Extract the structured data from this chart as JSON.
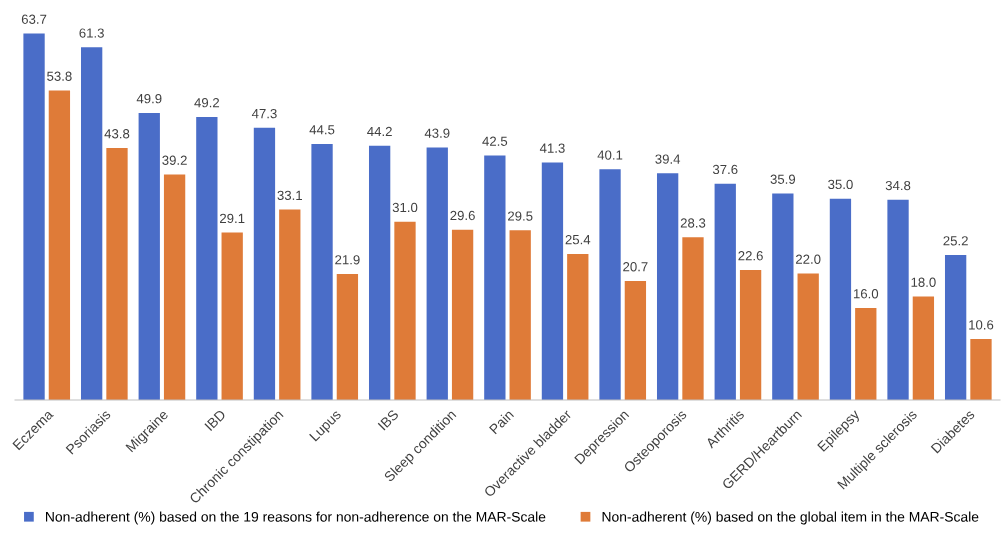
{
  "chart_data": {
    "type": "bar",
    "categories": [
      "Eczema",
      "Psoriasis",
      "Migraine",
      "IBD",
      "Chronic constipation",
      "Lupus",
      "IBS",
      "Sleep condition",
      "Pain",
      "Overactive bladder",
      "Depression",
      "Osteoporosis",
      "Arthritis",
      "GERD/Heartburn",
      "Epilepsy",
      "Multiple sclerosis",
      "Diabetes"
    ],
    "series": [
      {
        "name": "Non-adherent (%) based on the 19 reasons for non-adherence on the MAR-Scale",
        "color": "#4a6dc8",
        "values": [
          63.7,
          61.3,
          49.9,
          49.2,
          47.3,
          44.5,
          44.2,
          43.9,
          42.5,
          41.3,
          40.1,
          39.4,
          37.6,
          35.9,
          35.0,
          34.8,
          25.2
        ],
        "value_labels": [
          "63.7",
          "61.3",
          "49.9",
          "49.2",
          "47.3",
          "44.5",
          "44.2",
          "43.9",
          "42.5",
          "41.3",
          "40.1",
          "39.4",
          "37.6",
          "35.9",
          "35.0",
          "34.8",
          "25.2"
        ]
      },
      {
        "name": "Non-adherent (%) based on the global item in the MAR-Scale",
        "color": "#df7b38",
        "values": [
          53.8,
          43.8,
          39.2,
          29.1,
          33.1,
          21.9,
          31.0,
          29.6,
          29.5,
          25.4,
          20.7,
          28.3,
          22.6,
          22.0,
          16.0,
          18.0,
          10.6
        ],
        "value_labels": [
          "53.8",
          "43.8",
          "39.2",
          "29.1",
          "33.1",
          "21.9",
          "31.0",
          "29.6",
          "29.5",
          "25.4",
          "20.7",
          "28.3",
          "22.6",
          "22.0",
          "16.0",
          "18.0",
          "10.6"
        ]
      }
    ],
    "legend": "bottom"
  }
}
